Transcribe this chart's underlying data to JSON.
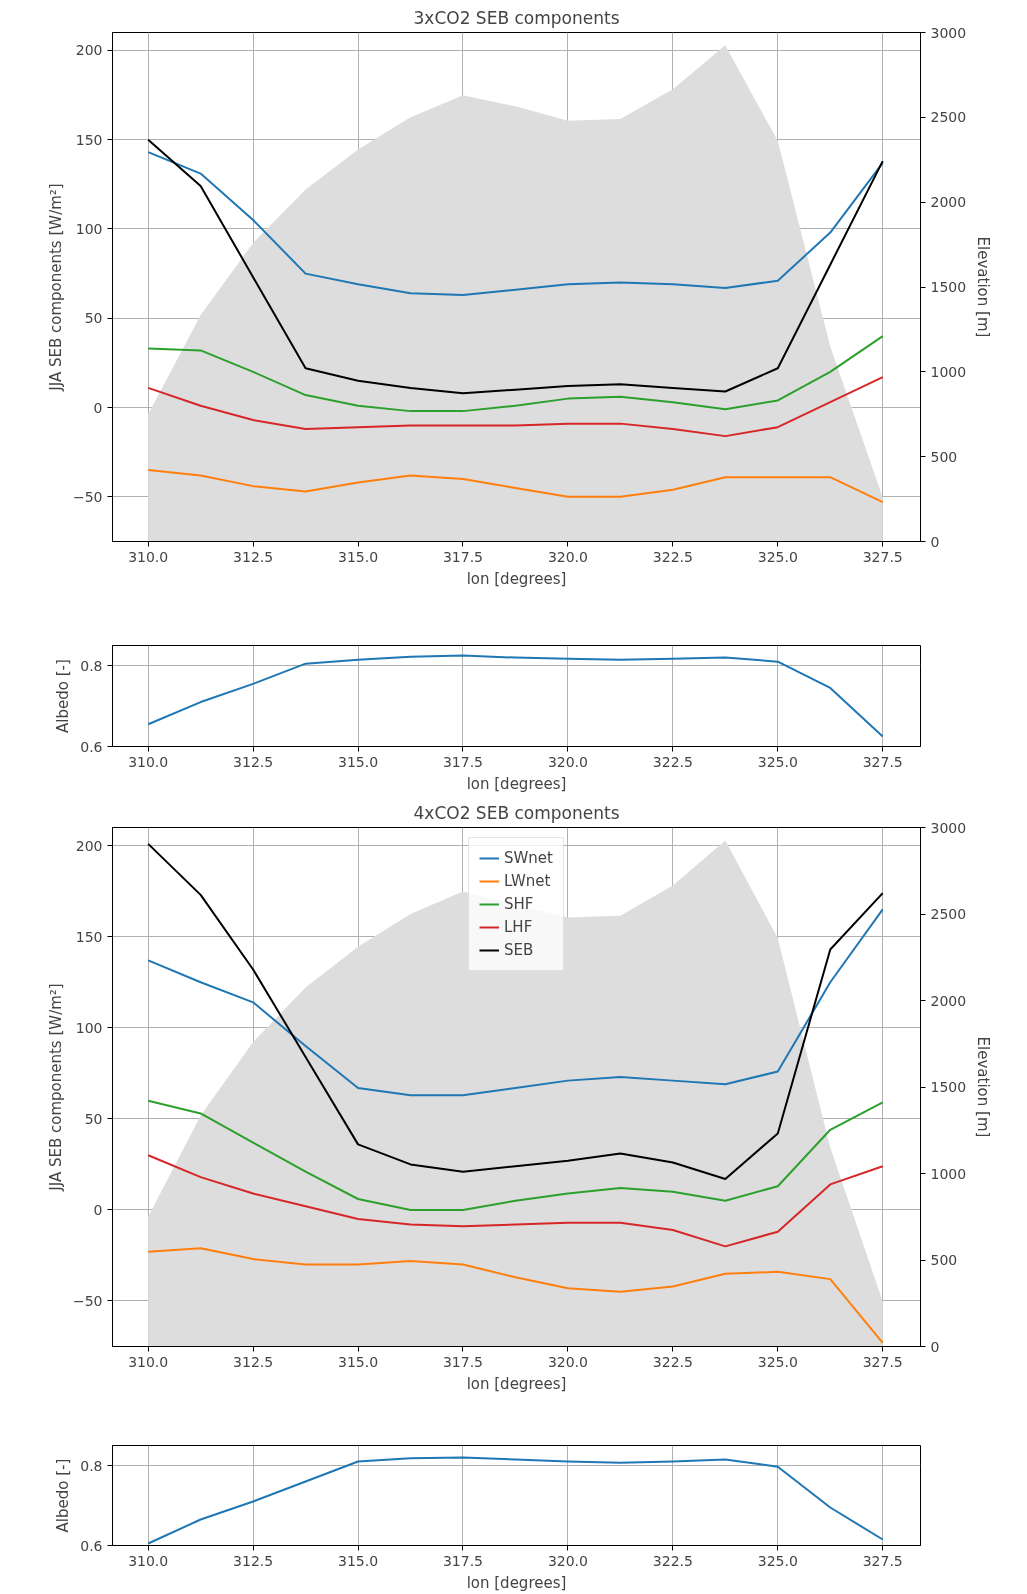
{
  "chart_data": [
    {
      "type": "line",
      "title": "3xCO2 SEB components",
      "xlabel": "lon [degrees]",
      "ylabel": "JJA SEB components [W/m²]",
      "y2label": "Elevation [m]",
      "x": [
        310.0,
        311.25,
        312.5,
        313.75,
        315.0,
        316.25,
        317.5,
        318.75,
        320.0,
        321.25,
        322.5,
        323.75,
        325.0,
        326.25,
        327.5
      ],
      "xlim": [
        309.15,
        328.4
      ],
      "xticks": [
        {
          "value": 310.0,
          "label": "310.0"
        },
        {
          "value": 312.5,
          "label": "312.5"
        },
        {
          "value": 315.0,
          "label": "315.0"
        },
        {
          "value": 317.5,
          "label": "317.5"
        },
        {
          "value": 320.0,
          "label": "320.0"
        },
        {
          "value": 322.5,
          "label": "322.5"
        },
        {
          "value": 325.0,
          "label": "325.0"
        },
        {
          "value": 327.5,
          "label": "327.5"
        }
      ],
      "ylim": [
        -75,
        210
      ],
      "yticks": [
        -50,
        0,
        50,
        100,
        150,
        200
      ],
      "y2lim": [
        0,
        3000
      ],
      "y2ticks": [
        0,
        500,
        1000,
        1500,
        2000,
        2500,
        3000
      ],
      "grid": true,
      "series": [
        {
          "type": "area",
          "axis": "y2",
          "color": "#dddddd",
          "values": [
            750,
            1335,
            1760,
            2075,
            2310,
            2500,
            2630,
            2565,
            2480,
            2490,
            2665,
            2925,
            2360,
            1150,
            260
          ]
        },
        {
          "color": "#1f77b4",
          "values": [
            143,
            131,
            105,
            75,
            69,
            64,
            63,
            66,
            69,
            70,
            69,
            67,
            71,
            98,
            137
          ]
        },
        {
          "color": "#ff7f0e",
          "values": [
            -35,
            -38,
            -44,
            -47,
            -42,
            -38,
            -40,
            -45,
            -50,
            -50,
            -46,
            -39,
            -39,
            -39,
            -53
          ]
        },
        {
          "color": "#2ca02c",
          "values": [
            33,
            32,
            20,
            7,
            1,
            -2,
            -2,
            1,
            5,
            6,
            3,
            -1,
            4,
            20,
            40
          ]
        },
        {
          "color": "#d62728",
          "values": [
            11,
            1,
            -7,
            -12,
            -11,
            -10,
            -10,
            -10,
            -9,
            -9,
            -12,
            -16,
            -11,
            3,
            17
          ]
        },
        {
          "color": "#000000",
          "values": [
            150,
            124,
            73,
            22,
            15,
            11,
            8,
            10,
            12,
            13,
            11,
            9,
            22,
            80,
            138
          ]
        }
      ]
    },
    {
      "type": "line",
      "xlabel": "lon [degrees]",
      "ylabel": "Albedo [-]",
      "x": [
        310.0,
        311.25,
        312.5,
        313.75,
        315.0,
        316.25,
        317.5,
        318.75,
        320.0,
        321.25,
        322.5,
        323.75,
        325.0,
        326.25,
        327.5
      ],
      "xlim": [
        309.15,
        328.4
      ],
      "xticks": [
        {
          "value": 310.0,
          "label": "310.0"
        },
        {
          "value": 312.5,
          "label": "312.5"
        },
        {
          "value": 315.0,
          "label": "315.0"
        },
        {
          "value": 317.5,
          "label": "317.5"
        },
        {
          "value": 320.0,
          "label": "320.0"
        },
        {
          "value": 322.5,
          "label": "322.5"
        },
        {
          "value": 325.0,
          "label": "325.0"
        },
        {
          "value": 327.5,
          "label": "327.5"
        }
      ],
      "ylim": [
        0.6,
        0.85
      ],
      "yticks": [
        0.6,
        0.8
      ],
      "grid": true,
      "series": [
        {
          "color": "#1f77b4",
          "values": [
            0.655,
            0.71,
            0.755,
            0.805,
            0.815,
            0.822,
            0.825,
            0.82,
            0.817,
            0.815,
            0.817,
            0.82,
            0.81,
            0.745,
            0.625
          ]
        }
      ]
    },
    {
      "type": "line",
      "title": "4xCO2 SEB components",
      "xlabel": "lon [degrees]",
      "ylabel": "JJA SEB components [W/m²]",
      "y2label": "Elevation [m]",
      "x": [
        310.0,
        311.25,
        312.5,
        313.75,
        315.0,
        316.25,
        317.5,
        318.75,
        320.0,
        321.25,
        322.5,
        323.75,
        325.0,
        326.25,
        327.5
      ],
      "xlim": [
        309.15,
        328.4
      ],
      "xticks": [
        {
          "value": 310.0,
          "label": "310.0"
        },
        {
          "value": 312.5,
          "label": "312.5"
        },
        {
          "value": 315.0,
          "label": "315.0"
        },
        {
          "value": 317.5,
          "label": "317.5"
        },
        {
          "value": 320.0,
          "label": "320.0"
        },
        {
          "value": 322.5,
          "label": "322.5"
        },
        {
          "value": 325.0,
          "label": "325.0"
        },
        {
          "value": 327.5,
          "label": "327.5"
        }
      ],
      "ylim": [
        -75,
        210
      ],
      "yticks": [
        -50,
        0,
        50,
        100,
        150,
        200
      ],
      "y2lim": [
        0,
        3000
      ],
      "y2ticks": [
        0,
        500,
        1000,
        1500,
        2000,
        2500,
        3000
      ],
      "grid": true,
      "legend": "top",
      "series": [
        {
          "type": "area",
          "axis": "y2",
          "color": "#dddddd",
          "values": [
            750,
            1335,
            1760,
            2075,
            2310,
            2500,
            2630,
            null,
            2480,
            2490,
            2665,
            2925,
            2360,
            1150,
            260
          ]
        },
        {
          "name": "SWnet",
          "color": "#1f77b4",
          "values": [
            137,
            125,
            114,
            90,
            67,
            63,
            63,
            67,
            71,
            73,
            71,
            69,
            76,
            125,
            165
          ]
        },
        {
          "name": "LWnet",
          "color": "#ff7f0e",
          "values": [
            -23,
            -21,
            -27,
            -30,
            -30,
            -28,
            -30,
            -37,
            -43,
            -45,
            -42,
            -35,
            -34,
            -38,
            -73
          ]
        },
        {
          "name": "SHF",
          "color": "#2ca02c",
          "values": [
            60,
            53,
            37,
            21,
            6,
            0,
            0,
            5,
            9,
            12,
            10,
            5,
            13,
            44,
            59
          ]
        },
        {
          "name": "LHF",
          "color": "#d62728",
          "values": [
            30,
            18,
            9,
            2,
            -5,
            -8,
            -9,
            -8,
            -7,
            -7,
            -11,
            -20,
            -12,
            14,
            24
          ]
        },
        {
          "name": "SEB",
          "color": "#000000",
          "values": [
            201,
            173,
            132,
            84,
            36,
            25,
            21,
            24,
            27,
            31,
            26,
            17,
            42,
            143,
            174
          ]
        }
      ]
    },
    {
      "type": "line",
      "xlabel": "lon [degrees]",
      "ylabel": "Albedo [-]",
      "x": [
        310.0,
        311.25,
        312.5,
        313.75,
        315.0,
        316.25,
        317.5,
        318.75,
        320.0,
        321.25,
        322.5,
        323.75,
        325.0,
        326.25,
        327.5
      ],
      "xlim": [
        309.15,
        328.4
      ],
      "xticks": [
        {
          "value": 310.0,
          "label": "310.0"
        },
        {
          "value": 312.5,
          "label": "312.5"
        },
        {
          "value": 315.0,
          "label": "315.0"
        },
        {
          "value": 317.5,
          "label": "317.5"
        },
        {
          "value": 320.0,
          "label": "320.0"
        },
        {
          "value": 322.5,
          "label": "322.5"
        },
        {
          "value": 325.0,
          "label": "325.0"
        },
        {
          "value": 327.5,
          "label": "327.5"
        }
      ],
      "ylim": [
        0.6,
        0.85
      ],
      "yticks": [
        0.6,
        0.8
      ],
      "grid": true,
      "series": [
        {
          "color": "#1f77b4",
          "values": [
            0.605,
            0.665,
            0.71,
            0.76,
            0.81,
            0.818,
            0.82,
            0.815,
            0.81,
            0.807,
            0.81,
            0.815,
            0.797,
            0.695,
            0.615
          ]
        }
      ]
    }
  ]
}
